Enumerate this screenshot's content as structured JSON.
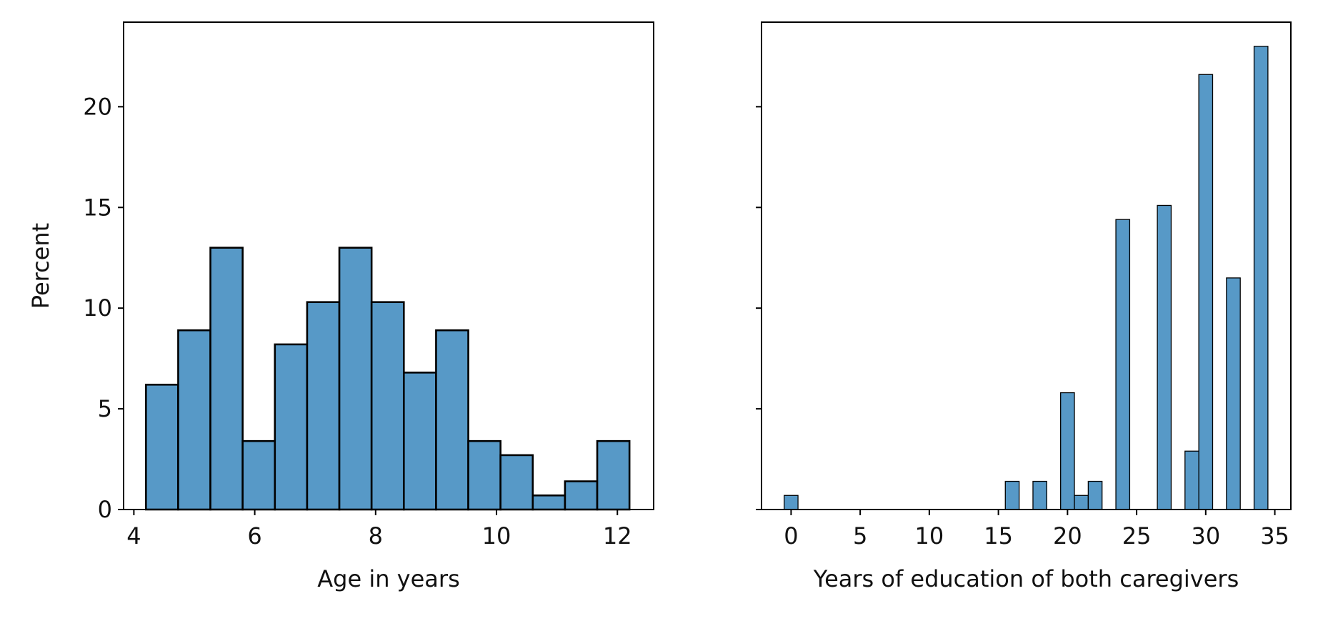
{
  "chart_data": [
    {
      "type": "histogram",
      "xlabel": "Age in years",
      "ylabel": "Percent",
      "bins": [
        4.2,
        4.7333,
        5.2667,
        5.8,
        6.3333,
        6.8667,
        7.4,
        7.9333,
        8.4667,
        9.0,
        9.5333,
        10.0667,
        10.6,
        11.1333,
        11.6667,
        12.2
      ],
      "values": [
        6.2,
        8.9,
        13.0,
        3.4,
        8.2,
        10.3,
        13.0,
        10.3,
        6.8,
        8.9,
        3.4,
        2.7,
        0.7,
        1.4,
        3.4
      ],
      "color": "#5799c7",
      "edge_width": 2.6,
      "xlim": [
        3.83,
        12.6
      ],
      "xticks": [
        4,
        6,
        8,
        10,
        12
      ],
      "ylim": [
        0,
        24.2
      ],
      "yticks": [
        0,
        5,
        10,
        15,
        20
      ],
      "show_ytick_labels": true
    },
    {
      "type": "histogram",
      "xlabel": "Years of education of both caregivers",
      "bins": [
        -0.5,
        0.5,
        1.5,
        2.5,
        3.5,
        4.5,
        5.5,
        6.5,
        7.5,
        8.5,
        9.5,
        10.5,
        11.5,
        12.5,
        13.5,
        14.5,
        15.5,
        16.5,
        17.5,
        18.5,
        19.5,
        20.5,
        21.5,
        22.5,
        23.5,
        24.5,
        25.5,
        26.5,
        27.5,
        28.5,
        29.5,
        30.5,
        31.5,
        32.5,
        33.5,
        34.5
      ],
      "values": [
        0.7,
        0,
        0,
        0,
        0,
        0,
        0,
        0,
        0,
        0,
        0,
        0,
        0,
        0,
        0,
        0,
        1.4,
        0,
        1.4,
        0,
        5.8,
        0.7,
        1.4,
        0,
        14.4,
        0,
        0,
        15.1,
        0,
        2.9,
        21.6,
        0,
        11.5,
        0,
        23.0
      ],
      "color": "#5799c7",
      "edge_width": 1.3,
      "xlim": [
        -2.14,
        36.16
      ],
      "xticks": [
        0,
        5,
        10,
        15,
        20,
        25,
        30,
        35
      ],
      "ylim": [
        0,
        24.2
      ],
      "yticks": [
        0,
        5,
        10,
        15,
        20
      ],
      "show_ytick_labels": false
    }
  ]
}
